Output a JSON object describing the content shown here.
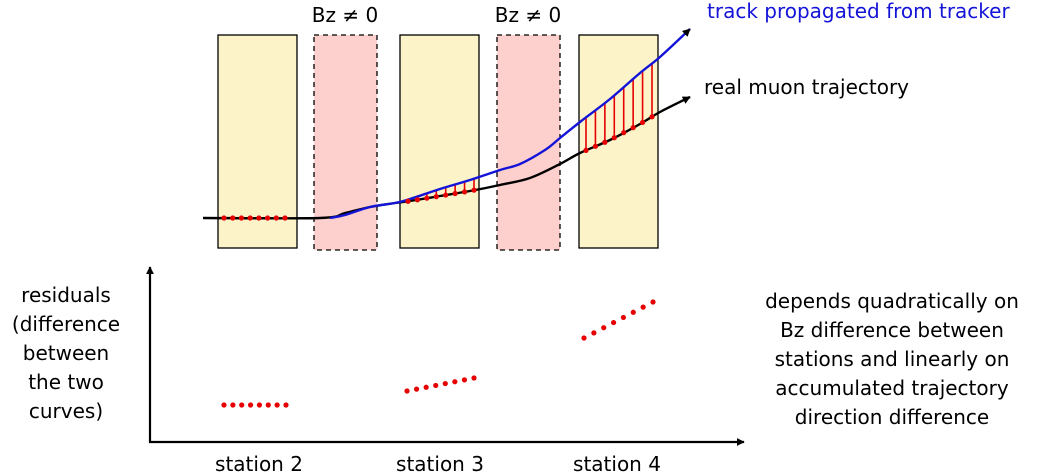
{
  "field_labels": [
    "Bz ≠ 0",
    "Bz ≠ 0"
  ],
  "track_labels": {
    "tracker": "track propagated from tracker",
    "real": "real muon trajectory"
  },
  "y_axis_label": [
    "residuals",
    "(difference",
    "between",
    "the two",
    "curves)"
  ],
  "station_labels": [
    "station 2",
    "station 3",
    "station 4"
  ],
  "note": [
    "depends quadratically on",
    "Bz difference between",
    "stations and linearly on",
    "accumulated trajectory",
    "direction difference"
  ],
  "colors": {
    "station_fill": "#fdf3c8",
    "field_fill": "#fdd0cd",
    "tracker_track": "#1414d8",
    "real_track": "#000000",
    "residual": "#e60000",
    "tracker_label": "#1414d8"
  }
}
